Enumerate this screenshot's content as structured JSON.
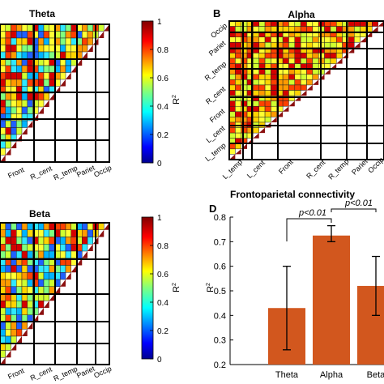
{
  "panels": {
    "theta": {
      "title": "Theta"
    },
    "alpha": {
      "title": "Alpha",
      "letter": "B"
    },
    "beta": {
      "title": "Beta"
    },
    "d": {
      "letter": "D",
      "title": "Frontoparietal connectivity"
    }
  },
  "regions": {
    "bottom_labels": [
      "Front",
      "R_cent",
      "R_temp",
      "Pariet",
      "Occip"
    ],
    "alpha_bottom_labels": [
      "L_temp",
      "L_cent",
      "Front",
      "R_cent",
      "R_temp",
      "Pariet",
      "Occip"
    ],
    "alpha_left_labels": [
      "Occip",
      "Pariet",
      "R_temp",
      "R_cent",
      "Front",
      "L_cent",
      "L_temp"
    ]
  },
  "colorbar": {
    "label": "R",
    "label_sup": "2",
    "ticks": [
      "1",
      "0.8",
      "0.6",
      "0.4",
      "0.2",
      "0"
    ]
  },
  "chart_data": {
    "type": "bar",
    "title": "Frontoparietal connectivity",
    "categories": [
      "Theta",
      "Alpha",
      "Beta"
    ],
    "values": [
      0.43,
      0.725,
      0.52
    ],
    "error_low": [
      0.26,
      0.7,
      0.4
    ],
    "error_high": [
      0.6,
      0.765,
      0.64
    ],
    "ylabel": "R",
    "ylabel_sup": "2",
    "ylim": [
      0.2,
      0.8
    ],
    "yticks": [
      "0.2",
      "0.3",
      "0.4",
      "0.5",
      "0.6",
      "0.7",
      "0.8"
    ],
    "annotations": [
      "p<0.01",
      "p<0.01"
    ],
    "bar_color": "#d2571e"
  },
  "colors": {
    "bar": "#d2571e",
    "diagonal": "#8b0f0f"
  }
}
